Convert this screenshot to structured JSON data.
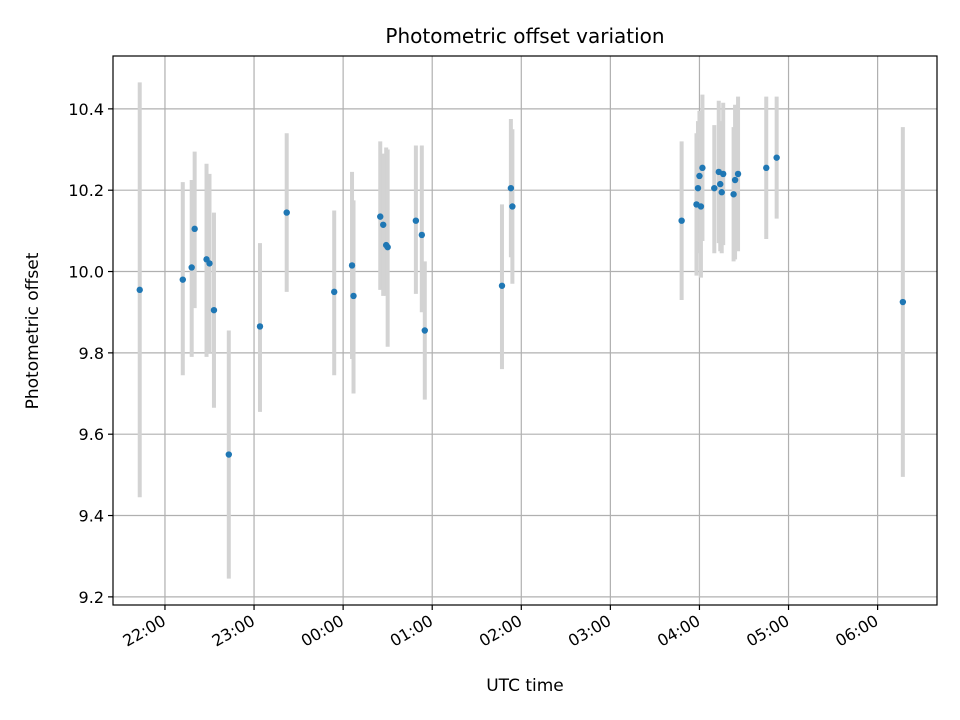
{
  "chart_data": {
    "type": "scatter",
    "title": "Photometric offset variation",
    "xlabel": "UTC time",
    "ylabel": "Photometric offset",
    "x_unit": "UTC time (HH:MM), times after midnight belong to the following day",
    "xlim": [
      "21:25",
      "06:40"
    ],
    "ylim": [
      9.18,
      10.53
    ],
    "x_ticks": [
      "22:00",
      "23:00",
      "00:00",
      "01:00",
      "02:00",
      "03:00",
      "04:00",
      "05:00",
      "06:00"
    ],
    "y_ticks": [
      9.2,
      9.4,
      9.6,
      9.8,
      10.0,
      10.2,
      10.4
    ],
    "y_tick_labels": [
      "9.2",
      "9.4",
      "9.6",
      "9.8",
      "10.0",
      "10.2",
      "10.4"
    ],
    "grid": true,
    "point_color": "#1f77b4",
    "errorbar_color": "#d3d3d3",
    "points": [
      {
        "x": "21:43",
        "y": 9.955,
        "yerr_low": 9.445,
        "yerr_high": 10.465
      },
      {
        "x": "22:12",
        "y": 9.98,
        "yerr_low": 9.745,
        "yerr_high": 10.22
      },
      {
        "x": "22:18",
        "y": 10.01,
        "yerr_low": 9.79,
        "yerr_high": 10.225
      },
      {
        "x": "22:20",
        "y": 10.105,
        "yerr_low": 9.91,
        "yerr_high": 10.295
      },
      {
        "x": "22:28",
        "y": 10.03,
        "yerr_low": 9.79,
        "yerr_high": 10.265
      },
      {
        "x": "22:30",
        "y": 10.02,
        "yerr_low": 9.8,
        "yerr_high": 10.24
      },
      {
        "x": "22:33",
        "y": 9.905,
        "yerr_low": 9.665,
        "yerr_high": 10.145
      },
      {
        "x": "22:43",
        "y": 9.55,
        "yerr_low": 9.245,
        "yerr_high": 9.855
      },
      {
        "x": "23:04",
        "y": 9.865,
        "yerr_low": 9.655,
        "yerr_high": 10.07
      },
      {
        "x": "23:22",
        "y": 10.145,
        "yerr_low": 9.95,
        "yerr_high": 10.34
      },
      {
        "x": "23:54",
        "y": 9.95,
        "yerr_low": 9.745,
        "yerr_high": 10.15
      },
      {
        "x": "00:06",
        "y": 10.015,
        "yerr_low": 9.785,
        "yerr_high": 10.245
      },
      {
        "x": "00:07",
        "y": 9.94,
        "yerr_low": 9.7,
        "yerr_high": 10.175
      },
      {
        "x": "00:25",
        "y": 10.135,
        "yerr_low": 9.955,
        "yerr_high": 10.32
      },
      {
        "x": "00:27",
        "y": 10.115,
        "yerr_low": 9.94,
        "yerr_high": 10.29
      },
      {
        "x": "00:29",
        "y": 10.065,
        "yerr_low": 9.94,
        "yerr_high": 10.305
      },
      {
        "x": "00:30",
        "y": 10.06,
        "yerr_low": 9.815,
        "yerr_high": 10.3
      },
      {
        "x": "00:49",
        "y": 10.125,
        "yerr_low": 9.945,
        "yerr_high": 10.31
      },
      {
        "x": "00:53",
        "y": 10.09,
        "yerr_low": 9.9,
        "yerr_high": 10.31
      },
      {
        "x": "00:55",
        "y": 9.855,
        "yerr_low": 9.685,
        "yerr_high": 10.025
      },
      {
        "x": "01:47",
        "y": 9.965,
        "yerr_low": 9.76,
        "yerr_high": 10.165
      },
      {
        "x": "01:53",
        "y": 10.205,
        "yerr_low": 10.035,
        "yerr_high": 10.375
      },
      {
        "x": "01:54",
        "y": 10.16,
        "yerr_low": 9.97,
        "yerr_high": 10.35
      },
      {
        "x": "03:48",
        "y": 10.125,
        "yerr_low": 9.93,
        "yerr_high": 10.32
      },
      {
        "x": "03:58",
        "y": 10.165,
        "yerr_low": 9.99,
        "yerr_high": 10.34
      },
      {
        "x": "03:59",
        "y": 10.205,
        "yerr_low": 10.045,
        "yerr_high": 10.37
      },
      {
        "x": "04:00",
        "y": 10.235,
        "yerr_low": 10.05,
        "yerr_high": 10.395
      },
      {
        "x": "04:01",
        "y": 10.16,
        "yerr_low": 9.985,
        "yerr_high": 10.33
      },
      {
        "x": "04:02",
        "y": 10.255,
        "yerr_low": 10.075,
        "yerr_high": 10.435
      },
      {
        "x": "04:10",
        "y": 10.205,
        "yerr_low": 10.045,
        "yerr_high": 10.36
      },
      {
        "x": "04:13",
        "y": 10.245,
        "yerr_low": 10.07,
        "yerr_high": 10.42
      },
      {
        "x": "04:14",
        "y": 10.215,
        "yerr_low": 10.05,
        "yerr_high": 10.37
      },
      {
        "x": "04:15",
        "y": 10.195,
        "yerr_low": 10.045,
        "yerr_high": 10.355
      },
      {
        "x": "04:16",
        "y": 10.24,
        "yerr_low": 10.065,
        "yerr_high": 10.415
      },
      {
        "x": "04:23",
        "y": 10.19,
        "yerr_low": 10.025,
        "yerr_high": 10.355
      },
      {
        "x": "04:24",
        "y": 10.225,
        "yerr_low": 10.03,
        "yerr_high": 10.41
      },
      {
        "x": "04:26",
        "y": 10.24,
        "yerr_low": 10.05,
        "yerr_high": 10.43
      },
      {
        "x": "04:45",
        "y": 10.255,
        "yerr_low": 10.08,
        "yerr_high": 10.43
      },
      {
        "x": "04:52",
        "y": 10.28,
        "yerr_low": 10.13,
        "yerr_high": 10.43
      },
      {
        "x": "06:17",
        "y": 9.925,
        "yerr_low": 9.495,
        "yerr_high": 10.355
      }
    ]
  }
}
